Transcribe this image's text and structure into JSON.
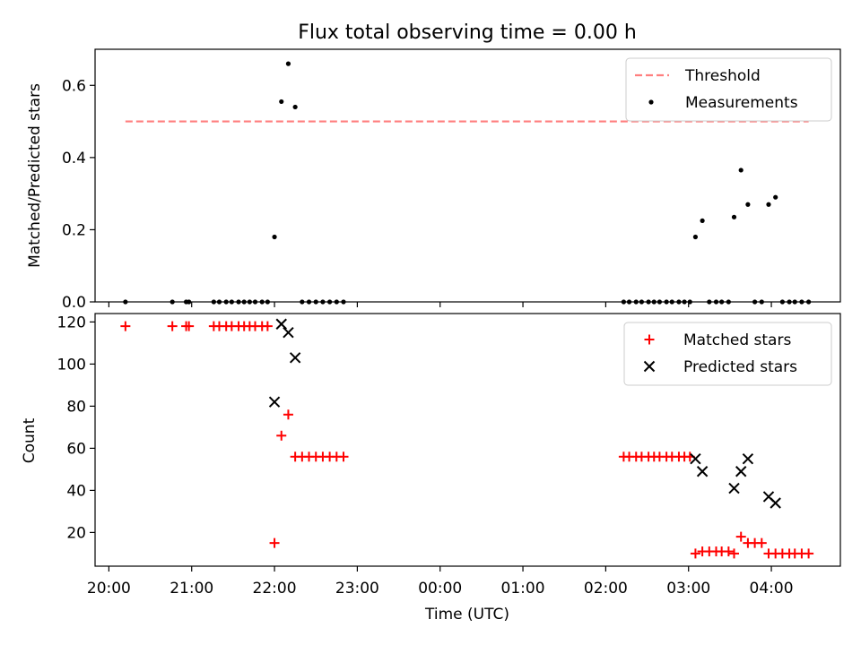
{
  "figure": {
    "title": "Flux total observing time = 0.00 h"
  },
  "chart_data": [
    {
      "type": "scatter",
      "panel": "top",
      "xlabel": "",
      "ylabel": "Matched/Predicted stars",
      "xlim": [
        "19:50",
        "04:50"
      ],
      "ylim": [
        0,
        0.7
      ],
      "yticks": [
        0.0,
        0.2,
        0.4,
        0.6
      ],
      "ytick_labels": [
        "0.0",
        "0.2",
        "0.4",
        "0.6"
      ],
      "legend": "top-right",
      "threshold": {
        "name": "Threshold",
        "y": 0.5,
        "x_start": "20:12",
        "x_end": "04:27",
        "color": "#ff7f7f",
        "style": "dashed"
      },
      "series": [
        {
          "name": "Measurements",
          "color": "#000000",
          "marker": "dot",
          "x": [
            "20:12",
            "20:46",
            "20:56",
            "20:58",
            "21:16",
            "21:20",
            "21:25",
            "21:29",
            "21:34",
            "21:38",
            "21:42",
            "21:46",
            "21:51",
            "21:55",
            "22:00",
            "22:05",
            "22:10",
            "22:15",
            "22:20",
            "22:25",
            "22:30",
            "22:35",
            "22:40",
            "22:45",
            "22:50",
            "23:20",
            "02:13",
            "02:17",
            "02:22",
            "02:26",
            "02:31",
            "02:35",
            "02:39",
            "02:44",
            "02:48",
            "02:53",
            "02:57",
            "03:01",
            "03:05",
            "03:10",
            "03:15",
            "03:20",
            "03:24",
            "03:29",
            "03:33",
            "03:38",
            "03:43",
            "03:48",
            "03:53",
            "03:58",
            "04:03",
            "04:08",
            "04:13",
            "04:17",
            "04:22",
            "04:27"
          ],
          "y": [
            0.0,
            0.0,
            0.0,
            0.0,
            0.0,
            0.0,
            0.0,
            0.0,
            0.0,
            0.0,
            0.0,
            0.0,
            0.0,
            0.0,
            0.18,
            0.555,
            0.66,
            0.54,
            0.0,
            0.0,
            0.0,
            0.0,
            0.0,
            0.0,
            0.0,
            null,
            0.0,
            0.0,
            0.0,
            0.0,
            0.0,
            0.0,
            0.0,
            0.0,
            0.0,
            0.0,
            0.0,
            0.0,
            0.18,
            0.225,
            0.0,
            0.0,
            0.0,
            0.0,
            0.235,
            0.365,
            0.27,
            0.0,
            0.0,
            0.27,
            0.29,
            0.0,
            0.0,
            0.0,
            0.0,
            0.0
          ]
        }
      ]
    },
    {
      "type": "scatter",
      "panel": "bottom",
      "xlabel": "Time (UTC)",
      "ylabel": "Count",
      "xlim": [
        "19:50",
        "04:50"
      ],
      "ylim": [
        4,
        124
      ],
      "xtick_labels": [
        "20:00",
        "21:00",
        "22:00",
        "23:00",
        "00:00",
        "01:00",
        "02:00",
        "03:00",
        "04:00"
      ],
      "yticks": [
        20,
        40,
        60,
        80,
        100,
        120
      ],
      "ytick_labels": [
        "20",
        "40",
        "60",
        "80",
        "100",
        "120"
      ],
      "legend": "top-right",
      "series": [
        {
          "name": "Matched stars",
          "color": "#ff0000",
          "marker": "plus",
          "x": [
            "20:12",
            "20:46",
            "20:56",
            "20:58",
            "21:16",
            "21:20",
            "21:25",
            "21:29",
            "21:34",
            "21:38",
            "21:42",
            "21:46",
            "21:51",
            "21:55",
            "22:00",
            "22:05",
            "22:10",
            "22:15",
            "22:20",
            "22:25",
            "22:30",
            "22:35",
            "22:40",
            "22:45",
            "22:50",
            "02:13",
            "02:17",
            "02:22",
            "02:26",
            "02:31",
            "02:35",
            "02:39",
            "02:44",
            "02:48",
            "02:53",
            "02:57",
            "03:01",
            "03:05",
            "03:10",
            "03:15",
            "03:20",
            "03:24",
            "03:29",
            "03:33",
            "03:38",
            "03:43",
            "03:48",
            "03:53",
            "03:58",
            "04:03",
            "04:08",
            "04:13",
            "04:17",
            "04:22",
            "04:27"
          ],
          "y": [
            118,
            118,
            118,
            118,
            118,
            118,
            118,
            118,
            118,
            118,
            118,
            118,
            118,
            118,
            15,
            66,
            76,
            56,
            56,
            56,
            56,
            56,
            56,
            56,
            56,
            56,
            56,
            56,
            56,
            56,
            56,
            56,
            56,
            56,
            56,
            56,
            56,
            10,
            11,
            11,
            11,
            11,
            11,
            10,
            18,
            15,
            15,
            15,
            10,
            10,
            10,
            10,
            10,
            10,
            10
          ]
        },
        {
          "name": "Predicted stars",
          "color": "#000000",
          "marker": "x",
          "x": [
            "22:00",
            "22:05",
            "22:10",
            "22:15",
            "03:05",
            "03:10",
            "03:33",
            "03:38",
            "03:43",
            "03:58",
            "04:03"
          ],
          "y": [
            82,
            119,
            115,
            103,
            55,
            49,
            41,
            49,
            55,
            37,
            34
          ]
        }
      ]
    }
  ]
}
